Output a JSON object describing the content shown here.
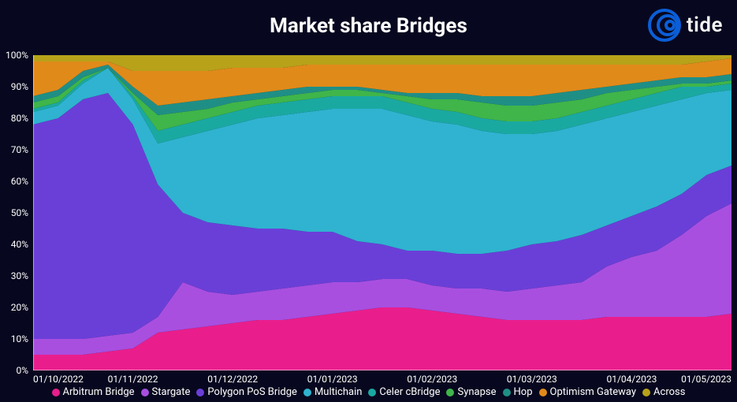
{
  "title": "Market share Bridges",
  "title_fontsize": 26,
  "brand": {
    "name": "tide",
    "ring_color": "#0b5ed7",
    "text_color": "#f5f5f5"
  },
  "background_color": "#07081f",
  "grid_color": "#2a2b44",
  "axis_color": "#ffffff",
  "tick_fontsize": 12,
  "legend_fontsize": 13,
  "ylim": [
    0,
    100
  ],
  "ytick_step": 10,
  "y_tick_labels": [
    "0%",
    "10%",
    "20%",
    "30%",
    "40%",
    "50%",
    "60%",
    "70%",
    "80%",
    "90%",
    "100%"
  ],
  "x_categories": [
    "01/10/2022",
    "01/11/2022",
    "01/12/2022",
    "01/01/2023",
    "01/02/2023",
    "01/03/2023",
    "01/04/2023",
    "01/05/2023"
  ],
  "x_tick_indices": [
    0,
    4,
    8,
    12,
    16,
    20,
    24,
    28
  ],
  "n_points": 29,
  "series": [
    {
      "name": "Arbitrum Bridge",
      "color": "#e91e8c"
    },
    {
      "name": "Stargate",
      "color": "#a84fe0"
    },
    {
      "name": "Polygon PoS Bridge",
      "color": "#6a3fd8"
    },
    {
      "name": "Multichain",
      "color": "#2fb3d0"
    },
    {
      "name": "Celer cBridge",
      "color": "#1aa9a1"
    },
    {
      "name": "Synapse",
      "color": "#3fb54a"
    },
    {
      "name": "Hop",
      "color": "#1f8f86"
    },
    {
      "name": "Optimism Gateway",
      "color": "#e08a1a"
    },
    {
      "name": "Across",
      "color": "#b7a21a"
    }
  ],
  "cumulative_boundaries": [
    [
      5,
      5,
      5,
      6,
      7,
      12,
      13,
      14,
      15,
      16,
      16,
      17,
      18,
      19,
      20,
      20,
      19,
      18,
      17,
      16,
      16,
      16,
      16,
      17,
      17,
      17,
      17,
      17,
      18
    ],
    [
      10,
      10,
      10,
      11,
      12,
      17,
      28,
      25,
      24,
      25,
      26,
      27,
      28,
      28,
      29,
      29,
      27,
      26,
      26,
      25,
      26,
      27,
      28,
      33,
      36,
      38,
      43,
      49,
      53
    ],
    [
      78,
      80,
      86,
      88,
      78,
      59,
      50,
      47,
      46,
      45,
      45,
      44,
      44,
      41,
      40,
      38,
      38,
      37,
      37,
      38,
      40,
      41,
      43,
      46,
      49,
      52,
      56,
      62,
      65
    ],
    [
      82,
      84,
      91,
      96,
      86,
      72,
      74,
      76,
      78,
      80,
      81,
      82,
      83,
      83,
      83,
      81,
      79,
      78,
      76,
      75,
      75,
      76,
      78,
      80,
      82,
      84,
      86,
      88,
      89
    ],
    [
      83,
      85,
      92,
      96,
      87,
      76,
      78,
      80,
      82,
      84,
      85,
      86,
      87,
      87,
      87,
      85,
      83,
      82,
      80,
      79,
      79,
      80,
      82,
      84,
      86,
      88,
      90,
      90,
      91
    ],
    [
      85,
      87,
      93,
      96,
      88,
      81,
      82,
      83,
      85,
      86,
      87,
      88,
      89,
      89,
      88,
      87,
      86,
      86,
      85,
      84,
      84,
      85,
      86,
      88,
      89,
      90,
      91,
      91,
      92
    ],
    [
      87,
      89,
      95,
      97,
      90,
      84,
      85,
      86,
      87,
      88,
      89,
      90,
      90,
      90,
      89,
      88,
      88,
      88,
      87,
      87,
      87,
      88,
      89,
      90,
      91,
      92,
      93,
      93,
      94
    ],
    [
      98,
      98,
      98,
      98,
      95,
      95,
      95,
      95,
      96,
      96,
      96,
      97,
      97,
      97,
      97,
      97,
      97,
      97,
      97,
      97,
      97,
      97,
      97,
      97,
      97,
      97,
      97,
      98,
      99
    ],
    [
      100,
      100,
      100,
      100,
      100,
      100,
      100,
      100,
      100,
      100,
      100,
      100,
      100,
      100,
      100,
      100,
      100,
      100,
      100,
      100,
      100,
      100,
      100,
      100,
      100,
      100,
      100,
      100,
      100
    ]
  ]
}
